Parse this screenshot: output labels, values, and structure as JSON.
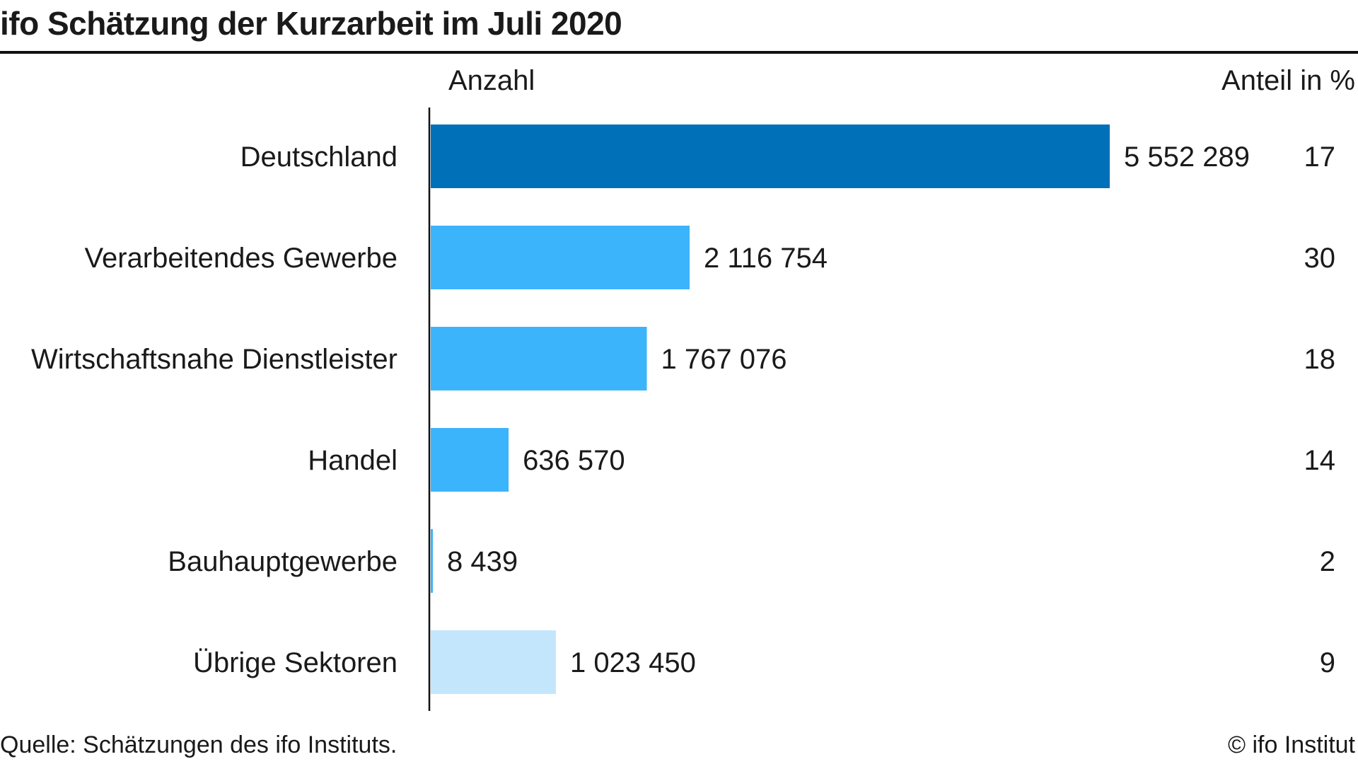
{
  "title": "ifo Schätzung der Kurzarbeit im Juli 2020",
  "columns": {
    "count": "Anzahl",
    "share": "Anteil in %"
  },
  "footer": {
    "source": "Quelle: Schätzungen des ifo Instituts.",
    "copyright": "© ifo Institut"
  },
  "colors": {
    "total": "#0070b8",
    "sector": "#3cb4fb",
    "other": "#c4e6fd",
    "axis": "#111111"
  },
  "chart_data": {
    "type": "bar",
    "orientation": "horizontal",
    "title": "ifo Schätzung der Kurzarbeit im Juli 2020",
    "categories": [
      "Deutschland",
      "Verarbeitendes Gewerbe",
      "Wirtschaftsnahe Dienstleister",
      "Handel",
      "Bauhauptgewerbe",
      "Übrige Sektoren"
    ],
    "values": [
      5552289,
      2116754,
      1767076,
      636570,
      8439,
      1023450
    ],
    "value_labels": [
      "5 552 289",
      "2 116 754",
      "1 767 076",
      "636 570",
      "8 439",
      "1 023 450"
    ],
    "shares": [
      "17",
      "30",
      "18",
      "14",
      "2",
      "9"
    ],
    "color_keys": [
      "total",
      "sector",
      "sector",
      "sector",
      "sector",
      "other"
    ],
    "xlim": [
      0,
      6000000
    ],
    "grid": false
  }
}
